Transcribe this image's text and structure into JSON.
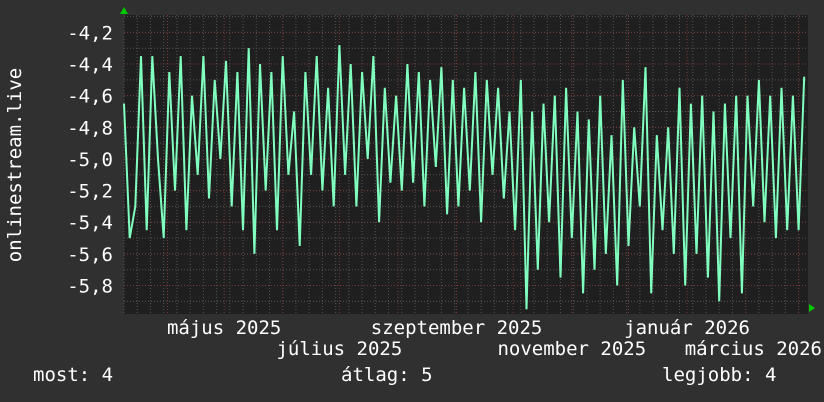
{
  "chart_data": {
    "type": "line",
    "ylabel": "onlinestream.live",
    "xlabel": "",
    "y_ticks": [
      "-4,2",
      "-4,4",
      "-4,6",
      "-4,8",
      "-5,0",
      "-5,2",
      "-5,4",
      "-5,6",
      "-5,8"
    ],
    "y_tick_values": [
      -4.2,
      -4.4,
      -4.6,
      -4.8,
      -5.0,
      -5.2,
      -5.4,
      -5.6,
      -5.8
    ],
    "ylim": [
      -5.98,
      -4.09
    ],
    "xlim": [
      "2025-03-09",
      "2026-03-06"
    ],
    "x_ticks": [
      {
        "label": "május 2025",
        "date": "2025-05-01"
      },
      {
        "label": "július 2025",
        "date": "2025-07-01"
      },
      {
        "label": "szeptember 2025",
        "date": "2025-09-01"
      },
      {
        "label": "november 2025",
        "date": "2025-11-01"
      },
      {
        "label": "január 2026",
        "date": "2026-01-01"
      },
      {
        "label": "március 2026",
        "date": "2026-03-01"
      }
    ],
    "grid": true,
    "line_color": "#80ffbf",
    "series": [
      {
        "x": [
          "2025-03-09",
          "2025-03-12",
          "2025-03-15",
          "2025-03-18",
          "2025-03-21",
          "2025-03-24",
          "2025-03-27",
          "2025-03-30",
          "2025-04-02",
          "2025-04-05",
          "2025-04-08",
          "2025-04-11",
          "2025-04-14",
          "2025-04-17",
          "2025-04-20",
          "2025-04-23",
          "2025-04-26",
          "2025-04-29",
          "2025-05-02",
          "2025-05-05",
          "2025-05-08",
          "2025-05-11",
          "2025-05-14",
          "2025-05-17",
          "2025-05-20",
          "2025-05-23",
          "2025-05-26",
          "2025-05-29",
          "2025-06-01",
          "2025-06-04",
          "2025-06-07",
          "2025-06-10",
          "2025-06-13",
          "2025-06-16",
          "2025-06-19",
          "2025-06-22",
          "2025-06-25",
          "2025-06-28",
          "2025-07-01",
          "2025-07-04",
          "2025-07-07",
          "2025-07-10",
          "2025-07-13",
          "2025-07-16",
          "2025-07-19",
          "2025-07-22",
          "2025-07-25",
          "2025-07-28",
          "2025-07-31",
          "2025-08-03",
          "2025-08-06",
          "2025-08-09",
          "2025-08-12",
          "2025-08-15",
          "2025-08-18",
          "2025-08-21",
          "2025-08-24",
          "2025-08-27",
          "2025-08-30",
          "2025-09-02",
          "2025-09-05",
          "2025-09-08",
          "2025-09-11",
          "2025-09-14",
          "2025-09-17",
          "2025-09-20",
          "2025-09-23",
          "2025-09-26",
          "2025-09-29",
          "2025-10-02",
          "2025-10-05",
          "2025-10-08",
          "2025-10-11",
          "2025-10-14",
          "2025-10-17",
          "2025-10-20",
          "2025-10-23",
          "2025-10-26",
          "2025-10-29",
          "2025-11-01",
          "2025-11-04",
          "2025-11-07",
          "2025-11-10",
          "2025-11-13",
          "2025-11-16",
          "2025-11-19",
          "2025-11-22",
          "2025-11-25",
          "2025-11-28",
          "2025-12-01",
          "2025-12-04",
          "2025-12-07",
          "2025-12-10",
          "2025-12-13",
          "2025-12-16",
          "2025-12-19",
          "2025-12-22",
          "2025-12-25",
          "2025-12-28",
          "2025-12-31",
          "2026-01-03",
          "2026-01-06",
          "2026-01-09",
          "2026-01-12",
          "2026-01-15",
          "2026-01-18",
          "2026-01-21",
          "2026-01-24",
          "2026-01-27",
          "2026-01-30",
          "2026-02-02",
          "2026-02-05",
          "2026-02-08",
          "2026-02-11",
          "2026-02-14",
          "2026-02-17",
          "2026-02-20",
          "2026-02-23",
          "2026-02-26",
          "2026-03-01",
          "2026-03-04"
        ],
        "values": [
          -4.65,
          -5.5,
          -5.3,
          -4.35,
          -5.45,
          -4.35,
          -5.0,
          -5.5,
          -4.45,
          -5.2,
          -4.35,
          -5.45,
          -4.6,
          -5.1,
          -4.35,
          -5.25,
          -4.5,
          -5.0,
          -4.38,
          -5.3,
          -4.45,
          -5.45,
          -4.3,
          -5.6,
          -4.4,
          -5.2,
          -4.45,
          -5.45,
          -4.35,
          -5.1,
          -4.7,
          -5.55,
          -4.45,
          -5.1,
          -4.35,
          -5.2,
          -4.55,
          -5.3,
          -4.28,
          -5.1,
          -4.4,
          -5.3,
          -4.45,
          -5.0,
          -4.35,
          -5.4,
          -4.55,
          -5.15,
          -4.6,
          -5.2,
          -4.4,
          -5.15,
          -4.45,
          -5.3,
          -4.5,
          -5.05,
          -4.42,
          -5.35,
          -4.5,
          -5.3,
          -4.55,
          -5.2,
          -4.45,
          -5.4,
          -4.5,
          -5.1,
          -4.55,
          -5.25,
          -4.7,
          -5.45,
          -4.5,
          -5.95,
          -4.7,
          -5.7,
          -4.65,
          -5.4,
          -4.6,
          -5.75,
          -4.55,
          -5.5,
          -4.7,
          -5.85,
          -4.75,
          -5.7,
          -4.6,
          -5.6,
          -4.85,
          -5.8,
          -4.5,
          -5.55,
          -4.8,
          -5.3,
          -4.42,
          -5.85,
          -4.85,
          -5.45,
          -4.8,
          -5.6,
          -4.55,
          -5.8,
          -4.65,
          -5.6,
          -4.6,
          -5.75,
          -4.7,
          -5.9,
          -4.65,
          -5.5,
          -4.6,
          -5.85,
          -4.6,
          -5.3,
          -4.5,
          -5.4,
          -4.6,
          -5.5,
          -4.55,
          -5.45,
          -4.6,
          -5.45,
          -4.48
        ]
      }
    ]
  },
  "legend": {
    "current": "most: 4",
    "average": "átlag: 5",
    "best": "legjobb: 4"
  },
  "colors": {
    "background": "#303030",
    "plot_background": "#1f1f1f",
    "line": "#80ffbf",
    "major_grid": "#7a3b3b",
    "minor_grid": "#555555",
    "axis_arrow": "#00cc00"
  }
}
